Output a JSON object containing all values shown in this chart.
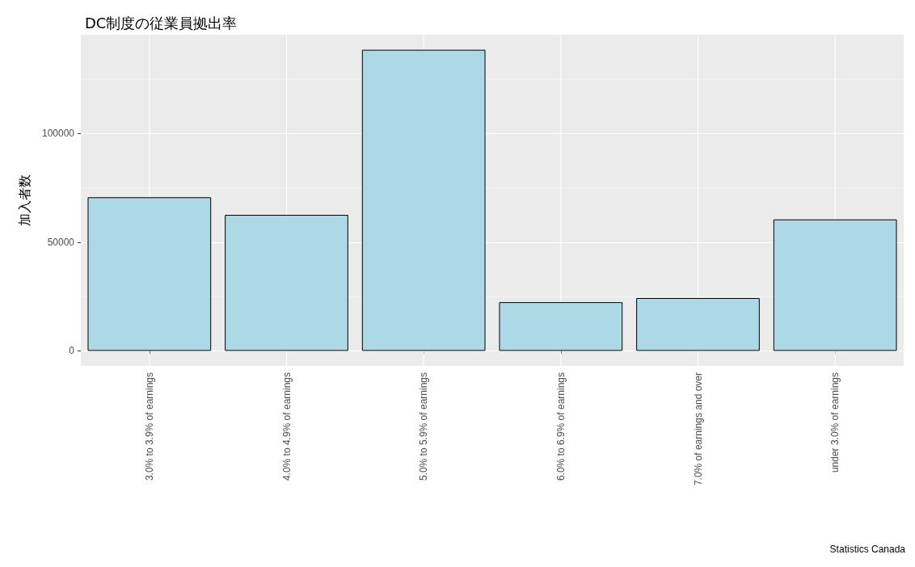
{
  "chart_data": {
    "type": "bar",
    "title": "DC制度の従業員拠出率",
    "ylabel": "加入者数",
    "categories": [
      "3.0% to 3.9% of earnings",
      "4.0% to 4.9% of earnings",
      "5.0% to 5.9% of earnings",
      "6.0% to 6.9% of earnings",
      "7.0% of earnings and over",
      "under 3.0% of earnings"
    ],
    "values": [
      70700,
      62600,
      138600,
      22400,
      24300,
      60500
    ],
    "color": "#add8e6",
    "ylim": [
      -6930,
      145530
    ],
    "yticks": [
      0,
      {
        "value": 25000,
        "label": null
      },
      50000,
      {
        "value": 75000,
        "label": null
      },
      100000,
      {
        "value": 125000,
        "label": null
      }
    ],
    "grid": true,
    "annotations": [
      "Statistics Canada"
    ]
  }
}
